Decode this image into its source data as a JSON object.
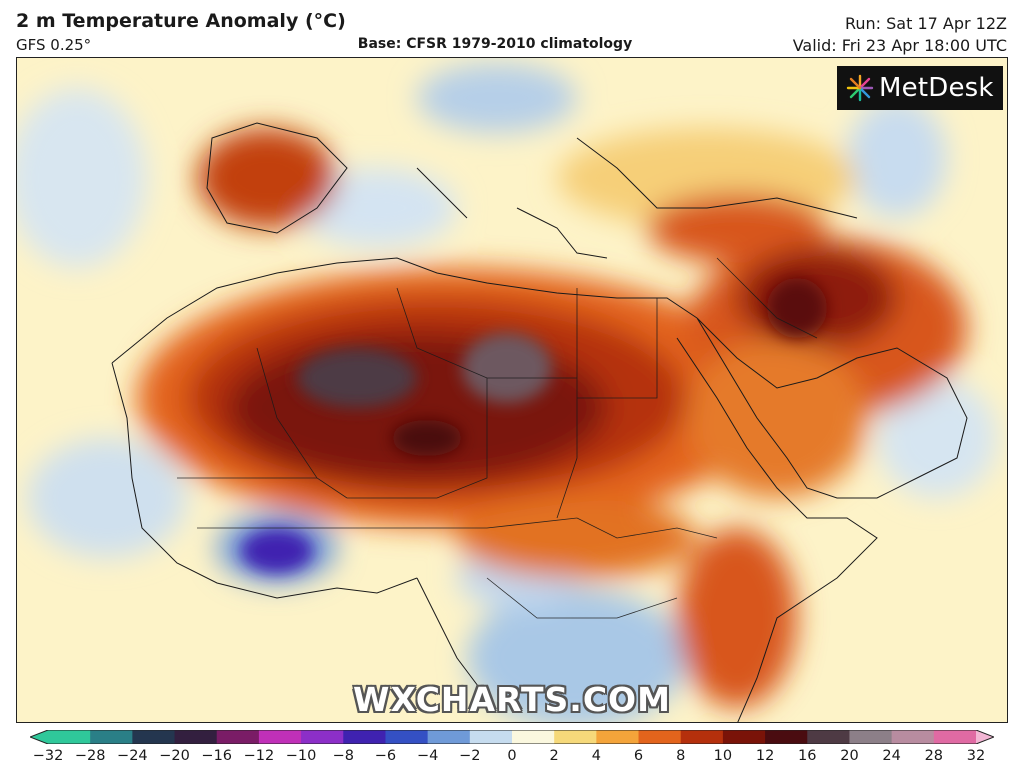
{
  "header": {
    "title": "2 m Temperature Anomaly (°C)",
    "model": "GFS 0.25°",
    "base": "Base: CFSR 1979-2010 climatology",
    "run": "Run: Sat 17 Apr 12Z",
    "valid": "Valid: Fri 23 Apr 18:00 UTC"
  },
  "logo": {
    "text": "MetDesk",
    "icon": "starburst-logo-icon"
  },
  "watermark": "WXCHARTS.COM",
  "colorbar": {
    "ticks": [
      -32,
      -28,
      -24,
      -20,
      -16,
      -12,
      -10,
      -8,
      -6,
      -4,
      -2,
      0,
      2,
      4,
      6,
      8,
      10,
      12,
      16,
      20,
      24,
      28,
      32
    ],
    "tick_labels": [
      "−32",
      "−28",
      "−24",
      "−20",
      "−16",
      "−12",
      "−10",
      "−8",
      "−6",
      "−4",
      "−2",
      "0",
      "2",
      "4",
      "6",
      "8",
      "10",
      "12",
      "16",
      "20",
      "24",
      "28",
      "32"
    ],
    "colors": [
      "#2fc89a",
      "#2a7f87",
      "#24364f",
      "#331f3f",
      "#7a1c66",
      "#c030b8",
      "#8c2fc8",
      "#3f22b0",
      "#3450c4",
      "#6f9ad8",
      "#c6dcef",
      "#fbf8df",
      "#f6d97a",
      "#f4a43a",
      "#e3641c",
      "#b5300c",
      "#7a1308",
      "#4a0c10",
      "#4e3a44",
      "#8c7f88",
      "#b88ca0",
      "#e06aa3",
      "#f2b6d4"
    ]
  }
}
